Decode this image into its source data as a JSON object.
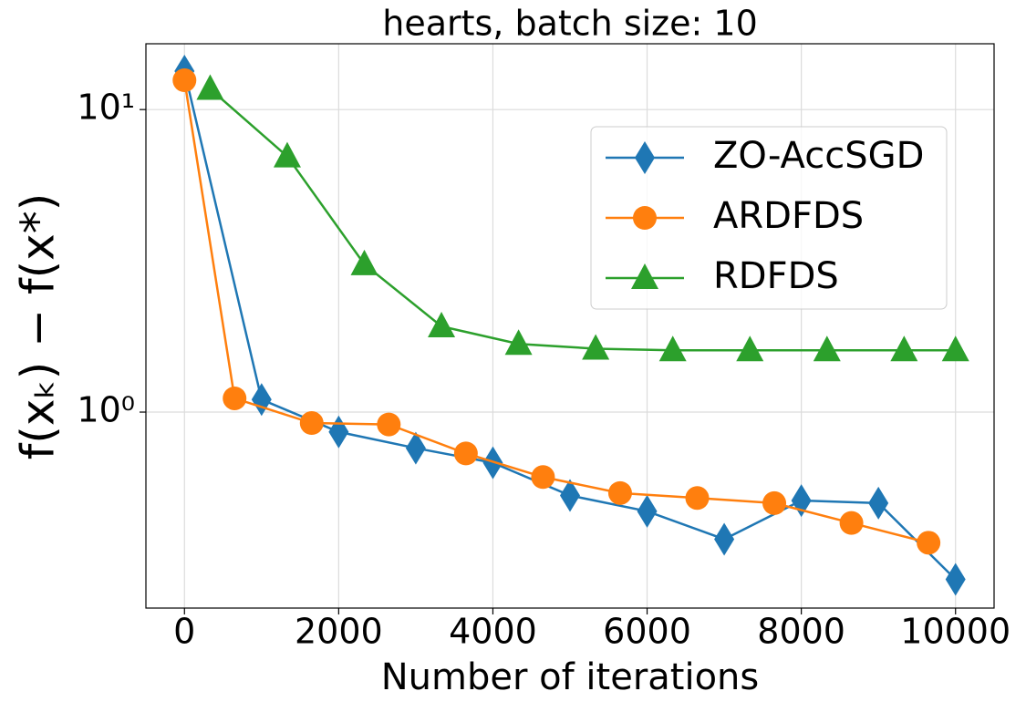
{
  "chart_data": {
    "type": "line",
    "title": "hearts, batch size: 10",
    "x_label": "Number of iterations",
    "y_label": "f(xₖ) − f(x*)",
    "log_y": true,
    "grid": true,
    "legend": "upper right",
    "xlim": [
      -500,
      10500
    ],
    "xticks": [
      0,
      2000,
      4000,
      6000,
      8000,
      10000
    ],
    "ylim": [
      0.225,
      16.5
    ],
    "yticks": [
      {
        "value": 1,
        "label": "10⁰"
      },
      {
        "value": 10,
        "label": "10¹"
      }
    ],
    "series": [
      {
        "name": "ZO-AccSGD",
        "color": "#1f77b4",
        "marker": "diamond",
        "x": [
          0,
          1000,
          2000,
          3000,
          4000,
          5000,
          6000,
          7000,
          8000,
          9000,
          10000
        ],
        "values": [
          13.4,
          1.1,
          0.86,
          0.76,
          0.68,
          0.53,
          0.47,
          0.38,
          0.51,
          0.5,
          0.28
        ]
      },
      {
        "name": "ARDFDS",
        "color": "#ff7f0e",
        "marker": "circle",
        "x": [
          0,
          650,
          1650,
          2650,
          3650,
          4650,
          5650,
          6650,
          7650,
          8650,
          9650
        ],
        "values": [
          12.5,
          1.11,
          0.92,
          0.91,
          0.73,
          0.61,
          0.54,
          0.52,
          0.5,
          0.43,
          0.37
        ]
      },
      {
        "name": "RDFDS",
        "color": "#2ca02c",
        "marker": "triangle",
        "x": [
          333,
          1333,
          2333,
          3333,
          4333,
          5333,
          6333,
          7333,
          8333,
          9333,
          10000
        ],
        "values": [
          11.7,
          7.0,
          3.08,
          1.92,
          1.68,
          1.62,
          1.6,
          1.6,
          1.6,
          1.6,
          1.6
        ]
      }
    ]
  }
}
